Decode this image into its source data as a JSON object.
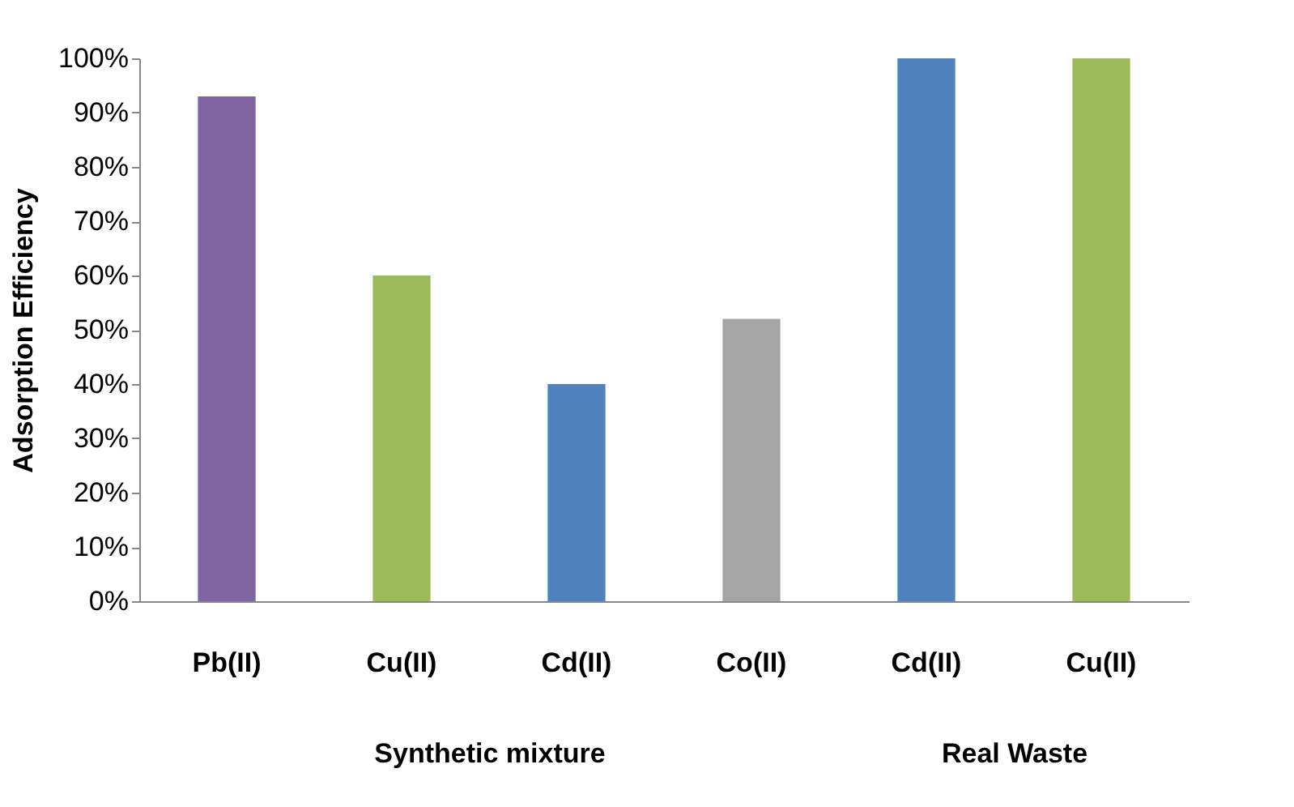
{
  "chart_data": [
    {
      "type": "bar",
      "ylabel": "Adsorption Efficiency",
      "xlabel": "Synthetic mixture",
      "categories": [
        "Pb(II)",
        "Cu(II)",
        "Cd(II)",
        "Co(II)"
      ],
      "values": [
        93,
        60,
        40,
        52
      ],
      "colors": [
        "#8064a2",
        "#9bbb59",
        "#4f81bd",
        "#a5a5a5"
      ],
      "ylim": [
        0,
        100
      ],
      "yticks": [
        {
          "value": 0,
          "label": "0%"
        },
        {
          "value": 10,
          "label": "10%"
        },
        {
          "value": 20,
          "label": "20%"
        },
        {
          "value": 30,
          "label": "30%"
        },
        {
          "value": 40,
          "label": "40%"
        },
        {
          "value": 50,
          "label": "50%"
        },
        {
          "value": 60,
          "label": "60%"
        },
        {
          "value": 70,
          "label": "70%"
        },
        {
          "value": 80,
          "label": "80%"
        },
        {
          "value": 90,
          "label": "90%"
        },
        {
          "value": 100,
          "label": "100%"
        }
      ],
      "grid": false
    },
    {
      "type": "bar",
      "xlabel": "Real Waste",
      "categories": [
        "Cd(II)",
        "Cu(II)"
      ],
      "values": [
        100,
        100
      ],
      "colors": [
        "#4f81bd",
        "#9bbb59"
      ],
      "ylim": [
        0,
        100
      ],
      "tick_labels": "x",
      "grid": false
    }
  ]
}
